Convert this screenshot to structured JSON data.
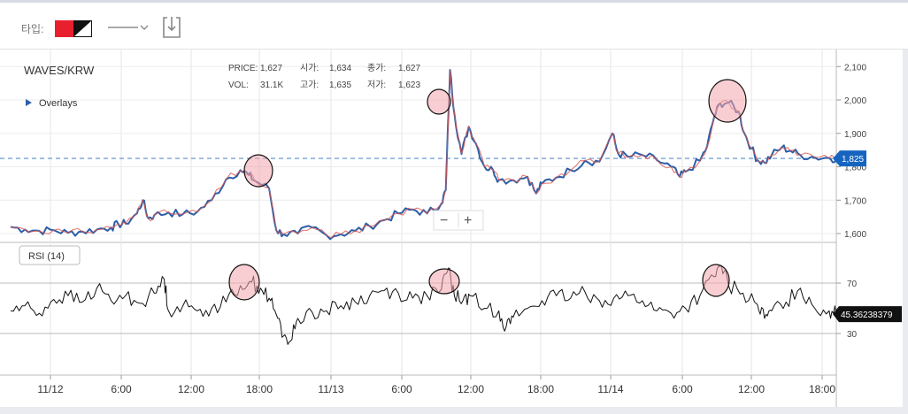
{
  "toolbar": {
    "type_label": "타입:",
    "color_swatch_icon": "red-black-white-swatch-icon",
    "line_style_icon": "line-style-dropdown-icon",
    "save_icon": "download-icon"
  },
  "legend": {
    "symbol": "WAVES/KRW",
    "overlays_label": "Overlays",
    "price_label": "PRICE:",
    "price_value": "1,627",
    "open_label": "시가:",
    "open_value": "1,634",
    "close_label": "종가:",
    "close_value": "1,627",
    "vol_label": "VOL:",
    "vol_value": "31.1K",
    "high_label": "고가:",
    "high_value": "1,635",
    "low_label": "저가:",
    "low_value": "1,623"
  },
  "zoom": {
    "minus": "−",
    "plus": "+"
  },
  "colors": {
    "up": "#d9534f",
    "down": "#2c5fa8",
    "last_price_badge": "#1565c0",
    "rsi_badge": "#111111",
    "highlight_circle": "#f4a6ad",
    "dashed_line": "#5b8fd0"
  },
  "chart_data": [
    {
      "type": "line",
      "title": "WAVES/KRW",
      "x_ticks": [
        "11/12",
        "6:00",
        "12:00",
        "18:00",
        "11/13",
        "6:00",
        "12:00",
        "18:00",
        "11/14",
        "6:00",
        "12:00",
        "18:00"
      ],
      "y_ticks": [
        "2,100",
        "2,000",
        "1,900",
        "1,800",
        "1,700",
        "1,600"
      ],
      "ylim": [
        1560,
        2110
      ],
      "last_price": 1825,
      "last_price_label": "1,825",
      "series": [
        {
          "values": [
            [
              0,
              1620
            ],
            [
              1,
              1612
            ],
            [
              2,
              1608
            ],
            [
              3,
              1610
            ],
            [
              4,
              1602
            ],
            [
              5,
              1606
            ],
            [
              6,
              1612
            ],
            [
              7,
              1618
            ],
            [
              7.5,
              1628
            ],
            [
              8,
              1630
            ],
            [
              8.8,
              1660
            ],
            [
              9.2,
              1700
            ],
            [
              9.6,
              1645
            ],
            [
              10,
              1655
            ],
            [
              11,
              1663
            ],
            [
              12,
              1658
            ],
            [
              13,
              1665
            ],
            [
              14,
              1700
            ],
            [
              15,
              1762
            ],
            [
              16,
              1790
            ],
            [
              16.6,
              1775
            ],
            [
              17,
              1758
            ],
            [
              18,
              1735
            ],
            [
              18.5,
              1610
            ],
            [
              19,
              1598
            ],
            [
              20,
              1600
            ],
            [
              21,
              1618
            ],
            [
              22,
              1595
            ],
            [
              23,
              1598
            ],
            [
              24,
              1608
            ],
            [
              25,
              1622
            ],
            [
              26,
              1640
            ],
            [
              27,
              1660
            ],
            [
              28,
              1672
            ],
            [
              29,
              1660
            ],
            [
              30,
              1690
            ],
            [
              30.3,
              1730
            ],
            [
              30.6,
              2090
            ],
            [
              30.9,
              1960
            ],
            [
              31.4,
              1838
            ],
            [
              31.9,
              1920
            ],
            [
              32.4,
              1870
            ],
            [
              33,
              1800
            ],
            [
              33.6,
              1790
            ],
            [
              34,
              1760
            ],
            [
              35,
              1760
            ],
            [
              36,
              1770
            ],
            [
              36.6,
              1720
            ],
            [
              37,
              1750
            ],
            [
              38,
              1768
            ],
            [
              39,
              1790
            ],
            [
              40,
              1818
            ],
            [
              41,
              1815
            ],
            [
              41.9,
              1900
            ],
            [
              42.3,
              1840
            ],
            [
              43,
              1830
            ],
            [
              44,
              1835
            ],
            [
              45,
              1820
            ],
            [
              46,
              1800
            ],
            [
              46.6,
              1770
            ],
            [
              47,
              1785
            ],
            [
              48,
              1818
            ],
            [
              48.5,
              1860
            ],
            [
              49,
              1950
            ],
            [
              49.4,
              1990
            ],
            [
              50,
              1992
            ],
            [
              50.7,
              1965
            ],
            [
              51.1,
              1900
            ],
            [
              51.6,
              1855
            ],
            [
              52,
              1820
            ],
            [
              52.5,
              1812
            ],
            [
              53,
              1835
            ],
            [
              53.7,
              1858
            ],
            [
              54.3,
              1848
            ],
            [
              55,
              1835
            ],
            [
              56,
              1828
            ],
            [
              57,
              1826
            ],
            [
              57.5,
              1825
            ]
          ]
        }
      ]
    },
    {
      "type": "line",
      "title": "RSI (14)",
      "y_ticks": [
        "70",
        "30"
      ],
      "ylim": [
        0,
        90
      ],
      "last_value": 45.36238379,
      "last_value_label": "45.36238379",
      "series": [
        {
          "values": [
            [
              0,
              48
            ],
            [
              1,
              52
            ],
            [
              2,
              46
            ],
            [
              3,
              57
            ],
            [
              4,
              60
            ],
            [
              5,
              55
            ],
            [
              6,
              66
            ],
            [
              7,
              56
            ],
            [
              8,
              60
            ],
            [
              9,
              54
            ],
            [
              10,
              62
            ],
            [
              10.7,
              73
            ],
            [
              11,
              48
            ],
            [
              12,
              52
            ],
            [
              13,
              48
            ],
            [
              14,
              50
            ],
            [
              15,
              55
            ],
            [
              16,
              68
            ],
            [
              16.8,
              71
            ],
            [
              17.4,
              66
            ],
            [
              18,
              58
            ],
            [
              18.5,
              45
            ],
            [
              19,
              28
            ],
            [
              19.5,
              24
            ],
            [
              20,
              42
            ],
            [
              21,
              47
            ],
            [
              22,
              48
            ],
            [
              23,
              52
            ],
            [
              24,
              55
            ],
            [
              25,
              60
            ],
            [
              26,
              64
            ],
            [
              27,
              62
            ],
            [
              28,
              58
            ],
            [
              29,
              60
            ],
            [
              30,
              65
            ],
            [
              30.5,
              82
            ],
            [
              30.9,
              60
            ],
            [
              31.5,
              56
            ],
            [
              32,
              60
            ],
            [
              33,
              50
            ],
            [
              34,
              48
            ],
            [
              34.5,
              35
            ],
            [
              35,
              43
            ],
            [
              36,
              50
            ],
            [
              37,
              56
            ],
            [
              38,
              60
            ],
            [
              39,
              58
            ],
            [
              40,
              63
            ],
            [
              41,
              56
            ],
            [
              42,
              58
            ],
            [
              43,
              60
            ],
            [
              44,
              56
            ],
            [
              45,
              48
            ],
            [
              46,
              46
            ],
            [
              47,
              50
            ],
            [
              48,
              60
            ],
            [
              49,
              75
            ],
            [
              49.5,
              84
            ],
            [
              50,
              68
            ],
            [
              51,
              62
            ],
            [
              52,
              53
            ],
            [
              52.5,
              42
            ],
            [
              53,
              48
            ],
            [
              54,
              55
            ],
            [
              55,
              66
            ],
            [
              56,
              50
            ],
            [
              57,
              48
            ],
            [
              57.5,
              45.36
            ]
          ]
        }
      ]
    }
  ]
}
